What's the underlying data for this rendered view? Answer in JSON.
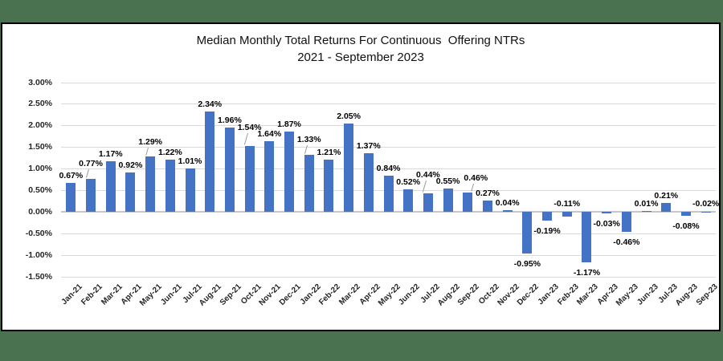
{
  "colors": {
    "background_green": "#4A7150",
    "bar_blue": "#4472C4",
    "gridline": "#D9D9D9",
    "chart_border": "#000000"
  },
  "chart_data": {
    "type": "bar",
    "title": "Median Monthly Total Returns For Continuous  Offering NTRs",
    "subtitle": "2021 - September 2023",
    "xlabel": "",
    "ylabel": "",
    "ylim": [
      -1.5,
      3.0
    ],
    "grid": true,
    "legend": "none",
    "categories": [
      "Jan-21",
      "Feb-21",
      "Mar-21",
      "Apr-21",
      "May-21",
      "Jun-21",
      "Jul-21",
      "Aug-21",
      "Sep-21",
      "Oct-21",
      "Nov-21",
      "Dec-21",
      "Jan-22",
      "Feb-22",
      "Mar-22",
      "Apr-22",
      "May-22",
      "Jun-22",
      "Jul-22",
      "Aug-22",
      "Sep-22",
      "Oct-22",
      "Nov-22",
      "Dec-22",
      "Jan-23",
      "Feb-23",
      "Mar-23",
      "Apr-23",
      "May-23",
      "Jun-23",
      "Jul-23",
      "Aug-23",
      "Sep-23"
    ],
    "values": [
      0.67,
      0.77,
      1.17,
      0.92,
      1.29,
      1.22,
      1.01,
      2.34,
      1.96,
      1.54,
      1.64,
      1.87,
      1.33,
      1.21,
      2.05,
      1.37,
      0.84,
      0.52,
      0.44,
      0.55,
      0.46,
      0.27,
      0.04,
      -0.95,
      -0.19,
      -0.11,
      -1.17,
      -0.03,
      -0.46,
      0.01,
      0.21,
      -0.08,
      -0.02
    ],
    "data_labels": [
      "0.67%",
      "0.77%",
      "1.17%",
      "0.92%",
      "1.29%",
      "1.22%",
      "1.01%",
      "2.34%",
      "1.96%",
      "1.54%",
      "1.64%",
      "1.87%",
      "1.33%",
      "1.21%",
      "2.05%",
      "1.37%",
      "0.84%",
      "0.52%",
      "0.44%",
      "0.55%",
      "0.46%",
      "0.27%",
      "0.04%",
      "-0.95%",
      "-0.19%",
      "-0.11%",
      "-1.17%",
      "-0.03%",
      "-0.46%",
      "0.01%",
      "0.21%",
      "-0.08%",
      "-0.02%"
    ],
    "y_ticks": {
      "labels": [
        "3.00%",
        "2.50%",
        "2.00%",
        "1.50%",
        "1.00%",
        "0.50%",
        "0.00%",
        "-0.50%",
        "-1.00%",
        "-1.50%"
      ],
      "values": [
        3.0,
        2.5,
        2.0,
        1.5,
        1.0,
        0.5,
        0.0,
        -0.5,
        -1.0,
        -1.5
      ]
    }
  }
}
